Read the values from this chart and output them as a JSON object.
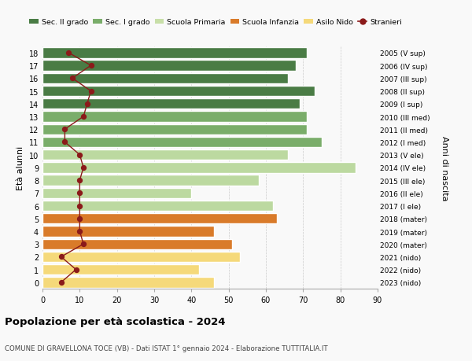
{
  "ages": [
    18,
    17,
    16,
    15,
    14,
    13,
    12,
    11,
    10,
    9,
    8,
    7,
    6,
    5,
    4,
    3,
    2,
    1,
    0
  ],
  "right_labels": [
    "2005 (V sup)",
    "2006 (IV sup)",
    "2007 (III sup)",
    "2008 (II sup)",
    "2009 (I sup)",
    "2010 (III med)",
    "2011 (II med)",
    "2012 (I med)",
    "2013 (V ele)",
    "2014 (IV ele)",
    "2015 (III ele)",
    "2016 (II ele)",
    "2017 (I ele)",
    "2018 (mater)",
    "2019 (mater)",
    "2020 (mater)",
    "2021 (nido)",
    "2022 (nido)",
    "2023 (nido)"
  ],
  "bar_values": [
    71,
    68,
    66,
    73,
    69,
    71,
    71,
    75,
    66,
    84,
    58,
    40,
    62,
    63,
    46,
    51,
    53,
    42,
    46
  ],
  "bar_colors": [
    "#4a7c45",
    "#4a7c45",
    "#4a7c45",
    "#4a7c45",
    "#4a7c45",
    "#7aad6a",
    "#7aad6a",
    "#7aad6a",
    "#bcd9a0",
    "#bcd9a0",
    "#bcd9a0",
    "#bcd9a0",
    "#bcd9a0",
    "#d97b2a",
    "#d97b2a",
    "#d97b2a",
    "#f5d97a",
    "#f5d97a",
    "#f5d97a"
  ],
  "stranieri_values": [
    7,
    13,
    8,
    13,
    12,
    11,
    6,
    6,
    10,
    11,
    10,
    10,
    10,
    10,
    10,
    11,
    5,
    9,
    5
  ],
  "legend_labels": [
    "Sec. II grado",
    "Sec. I grado",
    "Scuola Primaria",
    "Scuola Infanzia",
    "Asilo Nido",
    "Stranieri"
  ],
  "legend_colors": [
    "#4a7c45",
    "#7aad6a",
    "#c8dfa8",
    "#d97b2a",
    "#f5d97a",
    "#8b1a1a"
  ],
  "ylabel": "Età alunni",
  "right_ylabel": "Anni di nascita",
  "title": "Popolazione per età scolastica - 2024",
  "subtitle": "COMUNE DI GRAVELLONA TOCE (VB) - Dati ISTAT 1° gennaio 2024 - Elaborazione TUTTITALIA.IT",
  "xlim": [
    0,
    90
  ],
  "xticks": [
    0,
    10,
    20,
    30,
    40,
    50,
    60,
    70,
    80,
    90
  ],
  "bg_color": "#f9f9f9",
  "grid_color": "#cccccc"
}
